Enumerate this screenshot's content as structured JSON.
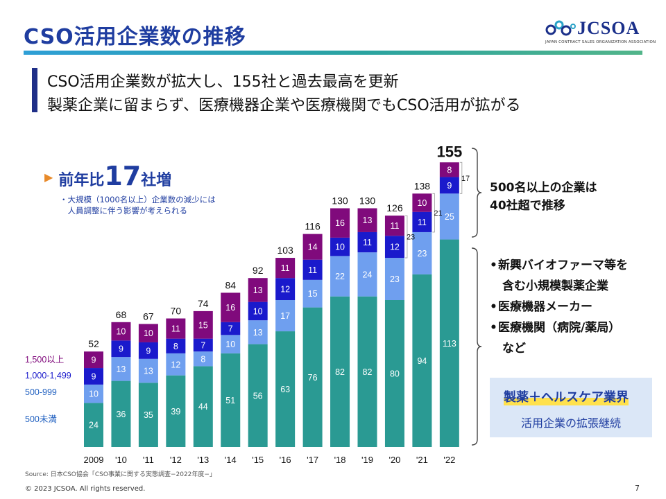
{
  "page": {
    "title": "CSO活用企業数の推移",
    "logo": {
      "name": "JCSOA",
      "subtitle": "JAPAN CONTRACT SALES ORGANIZATION ASSOCIATION"
    },
    "headline": [
      "CSO活用企業数が拡大し、155社と過去最高を更新",
      "製薬企業に留まらず、医療機器企業や医療機関でもCSO活用が拡がる"
    ],
    "yoy": {
      "prefix": "前年比",
      "number": "17",
      "suffix": "社増"
    },
    "yoy_note": [
      "・大規模（1000名以上）企業数の減少には",
      "　人員調整に伴う影響が考えられる"
    ],
    "bracket_text": [
      "500名以上の企業は",
      "40社超で推移"
    ],
    "bullets": [
      "新興バイオファーマ等を",
      "含む小規模製薬企業",
      "医療機器メーカー",
      "医療機関（病院/薬局）",
      "など"
    ],
    "callout": {
      "top": "製薬＋ヘルスケア業界",
      "bottom": "活用企業の拡張継続"
    },
    "source": "Source: 日本CSO協会「CSO事業に関する実態調査−2022年度−」",
    "copyright": "© 2023 JCSOA. All rights reserved.",
    "page_number": "7"
  },
  "chart_data": {
    "type": "bar",
    "stacked": true,
    "categories": [
      "2009",
      "'10",
      "'11",
      "'12",
      "'13",
      "'14",
      "'15",
      "'16",
      "'17",
      "'18",
      "'19",
      "'20",
      "'21",
      "'22"
    ],
    "series": [
      {
        "name": "500未満",
        "color": "#2a9a93",
        "values": [
          24,
          36,
          35,
          39,
          44,
          51,
          56,
          63,
          76,
          82,
          82,
          80,
          94,
          113
        ]
      },
      {
        "name": "500-999",
        "color": "#6f9fef",
        "values": [
          10,
          13,
          13,
          12,
          8,
          10,
          13,
          17,
          15,
          22,
          24,
          23,
          23,
          25
        ]
      },
      {
        "name": "1,000-1,499",
        "color": "#1a1acc",
        "values": [
          9,
          9,
          9,
          8,
          7,
          7,
          10,
          12,
          11,
          10,
          11,
          12,
          11,
          9
        ]
      },
      {
        "name": "1,500以上",
        "color": "#800a7c",
        "values": [
          9,
          10,
          10,
          11,
          15,
          16,
          13,
          11,
          14,
          16,
          13,
          11,
          10,
          8
        ]
      }
    ],
    "totals": [
      "52",
      "68",
      "67",
      "70",
      "74",
      "84",
      "92",
      "103",
      "116",
      "130",
      "130",
      "126",
      "138",
      "155"
    ],
    "side_labels": [
      {
        "index": 11,
        "text": "23"
      },
      {
        "index": 12,
        "text": "21"
      },
      {
        "index": 13,
        "text": "17"
      }
    ],
    "legend_label_colors": [
      "#2060c0",
      "#2060c0",
      "#1a1acc",
      "#800a7c"
    ],
    "grid": false
  }
}
